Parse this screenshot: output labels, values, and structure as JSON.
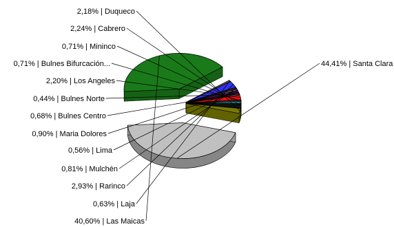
{
  "chart_data": {
    "type": "pie",
    "title": "",
    "slices": [
      {
        "label": "44,41% | Santa Clara",
        "value": 44.41,
        "color": "#c0c0c0",
        "exploded": true
      },
      {
        "label": "40,60% | Las Maicas",
        "value": 40.6,
        "color": "#1a7a1a",
        "exploded": true
      },
      {
        "label": "0,63% | Laja",
        "value": 0.63,
        "color": "#5a5a5a"
      },
      {
        "label": "2,93% | Rarinco",
        "value": 2.93,
        "color": "#3333ee"
      },
      {
        "label": "0,81% | Mulchén",
        "value": 0.81,
        "color": "#2a2a2a"
      },
      {
        "label": "0,56% | Lima",
        "value": 0.56,
        "color": "#8a8a8a"
      },
      {
        "label": "0,90% | Maria Dolores",
        "value": 0.9,
        "color": "#7a0a7a"
      },
      {
        "label": "0,68% | Bulnes Centro",
        "value": 0.68,
        "color": "#606060"
      },
      {
        "label": "0,44% | Bulnes Norte",
        "value": 0.44,
        "color": "#909090"
      },
      {
        "label": "2,20% | Los Angeles",
        "value": 2.2,
        "color": "#ee1111"
      },
      {
        "label": "0,71% | Bulnes Bifurcación...",
        "value": 0.71,
        "color": "#444444"
      },
      {
        "label": "0,71% | Mininco",
        "value": 0.71,
        "color": "#22cccc"
      },
      {
        "label": "2,24% | Cabrero",
        "value": 2.24,
        "color": "#111111"
      },
      {
        "label": "2,18% | Duqueco",
        "value": 2.18,
        "color": "#7a7a00"
      }
    ]
  }
}
